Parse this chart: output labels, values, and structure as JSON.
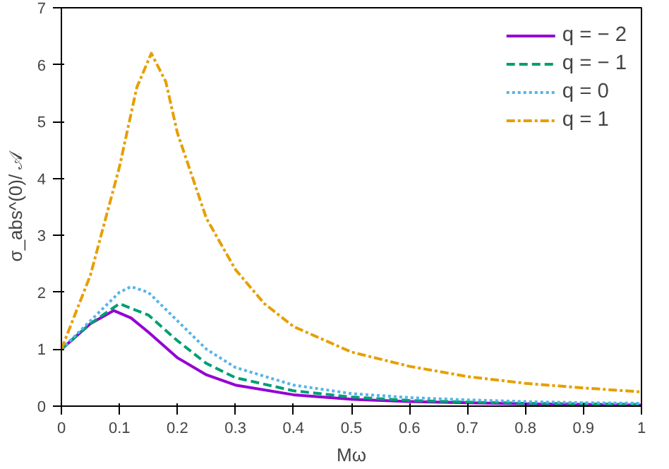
{
  "chart_data": {
    "type": "line",
    "xlabel": "Mω",
    "ylabel": "σ_abs^(0)/ 𝒜",
    "xlim": [
      0,
      1
    ],
    "ylim": [
      0,
      7
    ],
    "xticks": [
      0,
      0.1,
      0.2,
      0.3,
      0.4,
      0.5,
      0.6,
      0.7,
      0.8,
      0.9,
      1
    ],
    "yticks": [
      0,
      1,
      2,
      3,
      4,
      5,
      6,
      7
    ],
    "grid": false,
    "legend": "top right",
    "marker": "none",
    "series": [
      {
        "name": "q = − 2",
        "color": "#9400d3",
        "line_style": "solid",
        "x": [
          0,
          0.05,
          0.09,
          0.12,
          0.15,
          0.2,
          0.25,
          0.3,
          0.4,
          0.5,
          0.6,
          0.7,
          0.8,
          0.9,
          1.0
        ],
        "values": [
          1,
          1.45,
          1.68,
          1.55,
          1.3,
          0.85,
          0.55,
          0.37,
          0.2,
          0.12,
          0.08,
          0.06,
          0.04,
          0.03,
          0.02
        ]
      },
      {
        "name": "q = − 1",
        "color": "#009e73",
        "line_style": "dashed",
        "x": [
          0,
          0.05,
          0.1,
          0.15,
          0.2,
          0.25,
          0.3,
          0.4,
          0.5,
          0.6,
          0.7,
          0.8,
          0.9,
          1.0
        ],
        "values": [
          1,
          1.45,
          1.8,
          1.6,
          1.15,
          0.75,
          0.5,
          0.27,
          0.16,
          0.1,
          0.07,
          0.05,
          0.04,
          0.03
        ]
      },
      {
        "name": "q = 0",
        "color": "#56b4e9",
        "line_style": "dotted",
        "x": [
          0,
          0.05,
          0.1,
          0.12,
          0.15,
          0.2,
          0.25,
          0.3,
          0.4,
          0.5,
          0.6,
          0.7,
          0.8,
          0.9,
          1.0
        ],
        "values": [
          1,
          1.5,
          2.0,
          2.1,
          2.0,
          1.5,
          1.0,
          0.68,
          0.37,
          0.22,
          0.15,
          0.11,
          0.08,
          0.06,
          0.05
        ]
      },
      {
        "name": "q = 1",
        "color": "#e69f00",
        "line_style": "dashdot",
        "x": [
          0,
          0.05,
          0.1,
          0.13,
          0.155,
          0.18,
          0.2,
          0.25,
          0.3,
          0.35,
          0.4,
          0.5,
          0.6,
          0.7,
          0.8,
          0.9,
          1.0
        ],
        "values": [
          1,
          2.3,
          4.2,
          5.6,
          6.2,
          5.7,
          4.8,
          3.3,
          2.4,
          1.8,
          1.4,
          0.95,
          0.7,
          0.52,
          0.4,
          0.32,
          0.25
        ]
      }
    ]
  }
}
